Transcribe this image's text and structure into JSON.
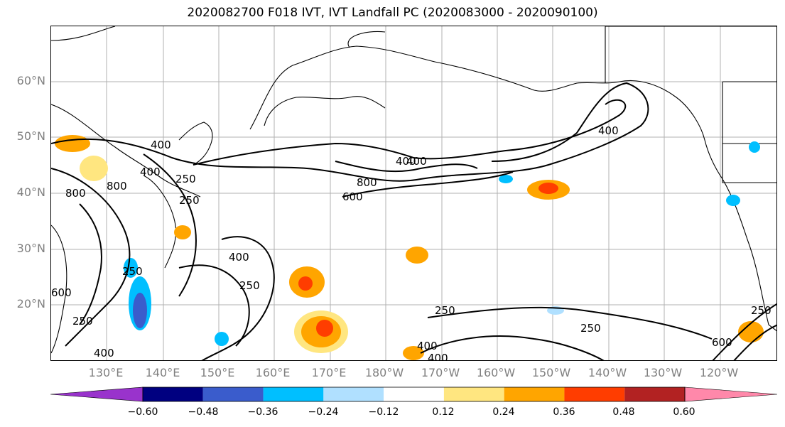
{
  "title": "2020082700 F018 IVT, IVT Landfall PC (2020083000 - 2020090100)",
  "latitude_labels": [
    "60°N",
    "50°N",
    "40°N",
    "30°N",
    "20°N"
  ],
  "longitude_labels": [
    "130°E",
    "140°E",
    "150°E",
    "160°E",
    "170°E",
    "180°W",
    "170°W",
    "160°W",
    "150°W",
    "140°W",
    "130°W",
    "120°W"
  ],
  "contour_labels": [
    "400",
    "800",
    "250",
    "400",
    "800",
    "600",
    "800",
    "400",
    "400",
    "250",
    "250",
    "400",
    "400",
    "250",
    "250",
    "600",
    "250",
    "250",
    "400",
    "600",
    "250",
    "400",
    "400"
  ],
  "colorbar": {
    "colors": [
      "#9933cc",
      "#000080",
      "#3a5ccc",
      "#00bfff",
      "#b0e0ff",
      "#ffffff",
      "#ffe680",
      "#ffa500",
      "#ff3d00",
      "#b22222",
      "#ff88aa"
    ],
    "tick_labels": [
      "−0.60",
      "−0.48",
      "−0.36",
      "−0.24",
      "−0.12",
      "0.12",
      "0.24",
      "0.36",
      "0.48",
      "0.60"
    ]
  }
}
